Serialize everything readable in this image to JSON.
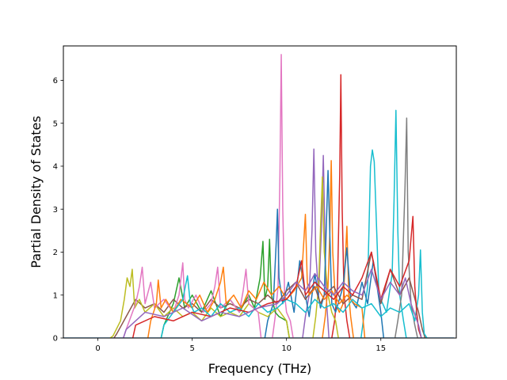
{
  "chart_data": {
    "type": "line",
    "title": "",
    "xlabel": "Frequency (THz)",
    "ylabel": "Partial Density of States",
    "xlim": [
      -1.83,
      19.0
    ],
    "ylim": [
      0,
      6.8
    ],
    "xticks": [
      0,
      5,
      10,
      15
    ],
    "yticks": [
      0,
      1,
      2,
      3,
      4,
      5,
      6
    ],
    "grid": false,
    "legend": "none",
    "palette": [
      "#1f77b4",
      "#ff7f0e",
      "#2ca02c",
      "#d62728",
      "#9467bd",
      "#8c564b",
      "#e377c2",
      "#7f7f7f",
      "#bcbd22",
      "#17becf"
    ],
    "series": [
      {
        "color": "#e377c2",
        "x": [
          9.4,
          9.55,
          9.65,
          9.72,
          9.8,
          9.9,
          10.0,
          10.2
        ],
        "y": [
          0.5,
          1.2,
          3.8,
          6.6,
          3.0,
          1.0,
          0.6,
          0.4
        ]
      },
      {
        "color": "#d62728",
        "x": [
          12.55,
          12.7,
          12.82,
          12.88,
          12.95,
          13.05,
          13.2
        ],
        "y": [
          0.4,
          1.2,
          3.8,
          6.13,
          3.0,
          1.0,
          0.4
        ]
      },
      {
        "color": "#17becf",
        "x": [
          14.1,
          14.3,
          14.45,
          14.55,
          14.65,
          14.9,
          15.3,
          15.6,
          15.7,
          15.8,
          15.9,
          16.0,
          16.2
        ],
        "y": [
          0.5,
          1.2,
          4.0,
          4.38,
          4.1,
          1.0,
          0.6,
          1.5,
          3.2,
          5.3,
          2.5,
          1.0,
          0.4
        ]
      },
      {
        "color": "#7f7f7f",
        "x": [
          15.9,
          16.1,
          16.28,
          16.37,
          16.45,
          16.6,
          16.8
        ],
        "y": [
          0.4,
          1.0,
          3.5,
          5.12,
          2.0,
          0.8,
          0.3
        ]
      },
      {
        "color": "#9467bd",
        "x": [
          11.0,
          11.2,
          11.35,
          11.45,
          11.55,
          11.7,
          11.85,
          11.95,
          12.1
        ],
        "y": [
          0.5,
          1.0,
          2.5,
          4.4,
          2.0,
          1.0,
          2.5,
          4.25,
          1.0
        ]
      },
      {
        "color": "#bcbd22",
        "x": [
          11.55,
          11.7,
          11.82,
          11.9,
          12.0,
          12.2,
          12.4,
          12.6
        ],
        "y": [
          0.5,
          1.2,
          2.8,
          3.75,
          2.0,
          1.0,
          0.6,
          0.4
        ]
      },
      {
        "color": "#ff7f0e",
        "x": [
          12.05,
          12.2,
          12.3,
          12.37,
          12.45,
          12.6,
          12.8,
          13.0,
          13.2,
          13.3,
          13.4
        ],
        "y": [
          0.5,
          1.2,
          2.5,
          4.13,
          2.0,
          0.8,
          0.6,
          0.8,
          2.6,
          1.0,
          0.5
        ]
      },
      {
        "color": "#1f77b4",
        "x": [
          9.0,
          9.3,
          9.45,
          9.52,
          9.6,
          9.8,
          10.1,
          10.4,
          10.7,
          11.0,
          11.2,
          11.5,
          11.8,
          12.0,
          12.2,
          12.4,
          12.6,
          13.0,
          13.2,
          13.4,
          13.7,
          14.0,
          14.3,
          14.6,
          15.0
        ],
        "y": [
          0.4,
          0.8,
          2.2,
          3.0,
          1.4,
          0.8,
          1.3,
          0.6,
          1.8,
          1.0,
          0.5,
          1.5,
          0.7,
          1.0,
          3.9,
          0.8,
          0.6,
          1.2,
          2.1,
          0.9,
          0.7,
          1.3,
          0.8,
          1.8,
          0.6
        ]
      },
      {
        "color": "#2ca02c",
        "x": [
          3.5,
          4.0,
          4.3,
          4.6,
          5.0,
          5.5,
          6.0,
          6.5,
          7.0,
          7.5,
          8.0,
          8.3,
          8.6,
          8.75,
          8.85,
          9.0,
          9.1,
          9.2,
          9.4,
          9.6,
          10.0
        ],
        "y": [
          0.3,
          0.8,
          1.4,
          0.7,
          1.0,
          0.6,
          1.1,
          0.5,
          0.9,
          0.6,
          1.0,
          0.7,
          1.4,
          2.25,
          0.9,
          1.2,
          2.3,
          1.0,
          0.6,
          0.5,
          0.4
        ]
      },
      {
        "color": "#8c564b",
        "x": [
          1.0,
          1.5,
          2.0,
          2.5,
          3.0,
          3.5,
          4.0,
          4.5,
          5.0,
          5.5,
          6.0,
          6.5,
          7.0,
          7.5,
          8.0,
          8.5,
          9.0,
          9.5,
          10.0,
          10.5,
          11.0,
          11.5,
          11.8,
          12.0,
          12.5,
          13.0,
          13.5,
          14.0,
          14.5,
          15.0,
          15.5,
          16.0,
          16.5,
          17.0,
          17.2
        ],
        "y": [
          0.1,
          0.5,
          0.9,
          0.7,
          0.8,
          0.6,
          0.9,
          0.7,
          0.8,
          0.6,
          0.9,
          0.7,
          0.8,
          0.7,
          0.9,
          0.8,
          1.0,
          0.8,
          1.1,
          1.3,
          0.9,
          1.2,
          0.8,
          1.0,
          1.2,
          0.8,
          1.0,
          0.9,
          2.0,
          0.8,
          1.6,
          1.0,
          1.4,
          0.6,
          0.2
        ]
      },
      {
        "color": "#bcbd22",
        "x": [
          0.8,
          1.2,
          1.4,
          1.55,
          1.7,
          1.82,
          1.95,
          2.2,
          2.5,
          3.0,
          3.5,
          4.0,
          4.5,
          5.0,
          5.5,
          6.0,
          6.5,
          7.0,
          7.5,
          8.0,
          8.5,
          9.0,
          9.5,
          10.0
        ],
        "y": [
          0.05,
          0.4,
          0.9,
          1.4,
          1.2,
          1.6,
          0.7,
          0.9,
          0.6,
          0.8,
          0.5,
          0.7,
          0.5,
          0.6,
          0.4,
          0.7,
          0.5,
          0.6,
          0.5,
          0.8,
          0.6,
          0.5,
          0.7,
          0.4
        ]
      },
      {
        "color": "#e377c2",
        "x": [
          1.5,
          2.0,
          2.2,
          2.35,
          2.5,
          2.8,
          3.0,
          3.5,
          4.0,
          4.3,
          4.5,
          4.6,
          4.8,
          5.2,
          5.6,
          6.0,
          6.2,
          6.35,
          6.5,
          7.0,
          7.5,
          7.7,
          7.85,
          8.0,
          8.5
        ],
        "y": [
          0.2,
          0.8,
          1.2,
          1.65,
          0.8,
          1.3,
          0.7,
          0.9,
          0.6,
          1.0,
          1.75,
          0.9,
          0.7,
          1.0,
          0.6,
          0.8,
          1.2,
          1.65,
          0.7,
          0.9,
          0.6,
          1.1,
          1.6,
          0.8,
          0.6
        ]
      },
      {
        "color": "#ff7f0e",
        "x": [
          2.8,
          3.1,
          3.2,
          3.35,
          3.6,
          4.0,
          4.4,
          5.0,
          5.4,
          5.8,
          6.2,
          6.5,
          6.65,
          6.8,
          7.2,
          7.6,
          8.0,
          8.4,
          8.8,
          9.2,
          9.6,
          10.0,
          10.4,
          10.8,
          11.0,
          11.1,
          11.2,
          11.6,
          12.0,
          12.4,
          12.8,
          13.2,
          13.6,
          14.0
        ],
        "y": [
          0.4,
          0.8,
          1.35,
          0.7,
          0.9,
          0.6,
          0.9,
          0.7,
          1.0,
          0.6,
          0.9,
          1.3,
          1.65,
          0.8,
          1.0,
          0.7,
          1.1,
          0.9,
          1.3,
          1.0,
          1.2,
          0.9,
          1.1,
          1.4,
          2.88,
          1.3,
          1.0,
          1.2,
          0.9,
          1.1,
          0.8,
          1.0,
          0.8,
          0.7
        ]
      },
      {
        "color": "#17becf",
        "x": [
          3.5,
          4.0,
          4.5,
          4.75,
          4.9,
          5.1,
          5.5,
          6.0,
          6.5,
          7.0,
          7.5,
          8.0,
          8.5,
          9.0,
          9.5,
          10.0,
          10.5,
          11.0,
          11.5,
          12.0,
          12.5,
          13.0,
          13.5,
          14.0,
          14.5,
          15.0,
          15.5,
          16.0,
          16.5,
          16.8,
          17.0,
          17.1,
          17.2,
          17.3
        ],
        "y": [
          0.3,
          0.6,
          0.9,
          1.45,
          0.8,
          0.6,
          0.7,
          0.5,
          0.8,
          0.6,
          0.7,
          0.5,
          0.8,
          0.6,
          0.7,
          0.9,
          0.8,
          0.6,
          0.9,
          0.7,
          0.8,
          0.6,
          0.9,
          0.7,
          0.8,
          0.5,
          0.7,
          0.6,
          0.8,
          0.4,
          1.0,
          2.05,
          0.6,
          0.1
        ]
      },
      {
        "color": "#d62728",
        "x": [
          2.0,
          3.0,
          4.0,
          5.0,
          6.0,
          7.0,
          8.0,
          9.0,
          10.0,
          10.5,
          10.8,
          11.0,
          11.5,
          12.0,
          12.5,
          13.0,
          13.5,
          14.0,
          14.5,
          15.0,
          15.5,
          16.0,
          16.5,
          16.7,
          16.8,
          16.9,
          17.0
        ],
        "y": [
          0.3,
          0.5,
          0.4,
          0.6,
          0.5,
          0.7,
          0.6,
          0.8,
          0.9,
          1.2,
          1.8,
          1.0,
          1.3,
          1.1,
          0.9,
          1.2,
          1.0,
          1.4,
          2.0,
          0.9,
          1.6,
          1.2,
          1.8,
          2.83,
          1.2,
          0.6,
          0.2
        ]
      },
      {
        "color": "#9467bd",
        "x": [
          1.5,
          2.5,
          3.5,
          4.5,
          5.5,
          6.5,
          7.5,
          8.5,
          9.5,
          10.0,
          10.5,
          11.0,
          11.5,
          12.0,
          12.5,
          13.0,
          13.5,
          14.0,
          14.5,
          15.0,
          15.5,
          16.0,
          16.3,
          16.6,
          17.0
        ],
        "y": [
          0.2,
          0.6,
          0.5,
          0.7,
          0.4,
          0.6,
          0.5,
          0.7,
          0.8,
          1.0,
          1.3,
          1.1,
          1.5,
          1.2,
          1.0,
          1.3,
          1.1,
          1.0,
          1.6,
          0.9,
          1.3,
          1.0,
          1.4,
          0.8,
          0.3
        ]
      }
    ]
  }
}
